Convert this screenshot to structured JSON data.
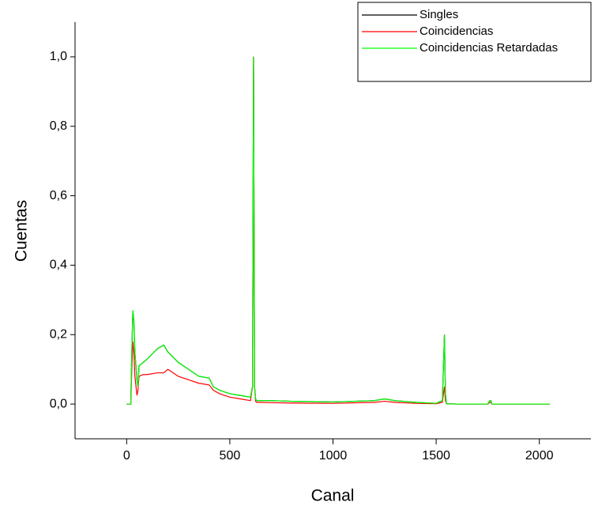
{
  "chart_data": {
    "type": "line",
    "x_label": "Canal",
    "y_label": "Cuentas",
    "x": [
      0,
      20,
      25,
      30,
      35,
      40,
      50,
      55,
      60,
      80,
      100,
      150,
      180,
      200,
      250,
      300,
      350,
      400,
      420,
      450,
      500,
      550,
      600,
      610,
      615,
      620,
      625,
      630,
      640,
      700,
      800,
      1000,
      1200,
      1250,
      1300,
      1400,
      1500,
      1530,
      1540,
      1545,
      1550,
      1600,
      1750,
      1760,
      1765,
      1770,
      2000,
      2050
    ],
    "series": [
      {
        "name": "Singles",
        "color": "#000000",
        "values": [
          0,
          0,
          0.15,
          0.27,
          0.24,
          0.15,
          0.07,
          0.05,
          0.11,
          0.12,
          0.13,
          0.16,
          0.17,
          0.15,
          0.12,
          0.1,
          0.08,
          0.075,
          0.05,
          0.04,
          0.03,
          0.025,
          0.02,
          0.05,
          1.0,
          0.05,
          0.015,
          0.01,
          0.01,
          0.01,
          0.008,
          0.006,
          0.01,
          0.015,
          0.01,
          0.005,
          0.002,
          0.01,
          0.2,
          0.03,
          0.001,
          0,
          0,
          0.01,
          0.01,
          0,
          0,
          0
        ]
      },
      {
        "name": "Coincidencias",
        "color": "#ff0000",
        "values": [
          0,
          0,
          0.1,
          0.18,
          0.15,
          0.08,
          0.025,
          0.04,
          0.08,
          0.085,
          0.085,
          0.09,
          0.09,
          0.1,
          0.08,
          0.07,
          0.06,
          0.055,
          0.04,
          0.03,
          0.02,
          0.015,
          0.01,
          0.05,
          1.0,
          0.05,
          0.008,
          0.005,
          0.005,
          0.004,
          0.003,
          0.002,
          0.005,
          0.008,
          0.005,
          0.002,
          0.001,
          0.005,
          0.05,
          0.01,
          0.001,
          0,
          0,
          0.005,
          0.005,
          0,
          0,
          0
        ]
      },
      {
        "name": "Coincidencias Retardadas",
        "color": "#00ff00",
        "values": [
          0,
          0,
          0.15,
          0.27,
          0.24,
          0.15,
          0.07,
          0.05,
          0.11,
          0.12,
          0.13,
          0.16,
          0.17,
          0.15,
          0.12,
          0.1,
          0.08,
          0.075,
          0.05,
          0.04,
          0.03,
          0.025,
          0.02,
          0.05,
          1.0,
          0.05,
          0.015,
          0.01,
          0.01,
          0.01,
          0.008,
          0.006,
          0.01,
          0.015,
          0.01,
          0.005,
          0.002,
          0.01,
          0.2,
          0.03,
          0.001,
          0,
          0,
          0.01,
          0.01,
          0,
          0,
          0
        ]
      }
    ],
    "xlim": [
      -250,
      2250
    ],
    "xticks": [
      0,
      500,
      1000,
      1500,
      2000
    ],
    "ylim": [
      -0.1,
      1.1
    ],
    "yticks": [
      {
        "value": 0,
        "label": "0,0"
      },
      {
        "value": 0.2,
        "label": "0,2"
      },
      {
        "value": 0.4,
        "label": "0,4"
      },
      {
        "value": 0.6,
        "label": "0,6"
      },
      {
        "value": 0.8,
        "label": "0,8"
      },
      {
        "value": 1.0,
        "label": "1,0"
      }
    ],
    "legend": "upper right"
  }
}
